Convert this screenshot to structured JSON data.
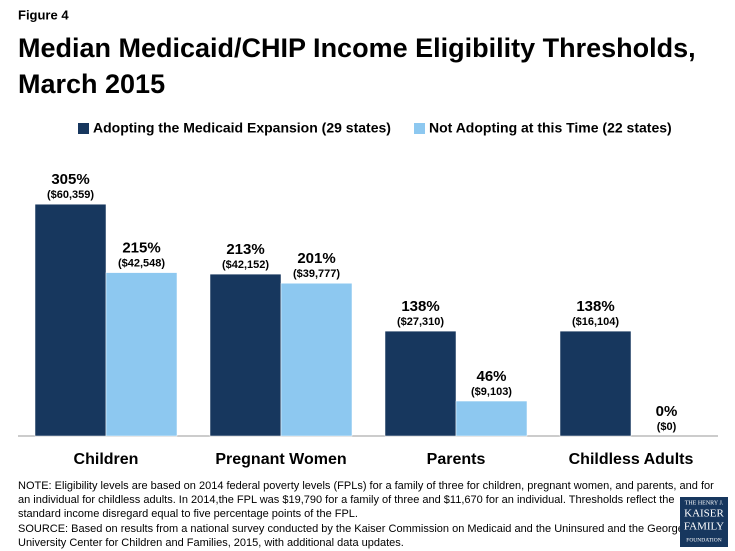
{
  "figure_label": "Figure 4",
  "chart_data": {
    "type": "bar",
    "title": [
      "Median Medicaid/CHIP Income Eligibility Thresholds,",
      "March 2015"
    ],
    "categories": [
      "Children",
      "Pregnant Women",
      "Parents",
      "Childless Adults"
    ],
    "series": [
      {
        "name": "Adopting the Medicaid Expansion (29 states)",
        "color": "#17375e",
        "values": [
          305,
          213,
          138,
          138
        ],
        "value_labels": [
          "305%",
          "213%",
          "138%",
          "138%"
        ],
        "dollar_labels": [
          "($60,359)",
          "($42,152)",
          "($27,310)",
          "($16,104)"
        ]
      },
      {
        "name": "Not Adopting at this Time (22 states)",
        "color": "#8dc8f0",
        "values": [
          215,
          201,
          46,
          0
        ],
        "value_labels": [
          "215%",
          "201%",
          "46%",
          "0%"
        ],
        "dollar_labels": [
          "($42,548)",
          "($39,777)",
          "($9,103)",
          "($0)"
        ]
      }
    ],
    "legend": "top"
  },
  "note": [
    "NOTE: Eligibility levels are based on 2014 federal poverty levels (FPLs) for a family of three for children, pregnant women, and parents, and for",
    "an individual for childless adults. In 2014,the FPL was $19,790 for a family of three and $11,670 for an individual. Thresholds reflect the",
    "standard income disregard equal to five percentage points of the FPL."
  ],
  "source": [
    "SOURCE: Based on  results from a national survey conducted by the Kaiser Commission on Medicaid and the Uninsured and the Georgetown",
    "University Center for Children and Families, 2015, with additional data updates."
  ],
  "logo": [
    "THE HENRY J.",
    "KAISER",
    "FAMILY",
    "FOUNDATION"
  ]
}
